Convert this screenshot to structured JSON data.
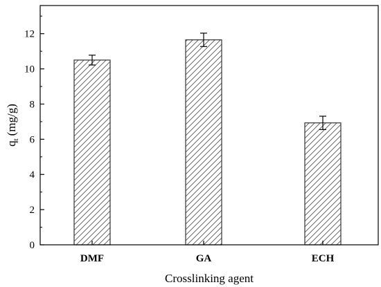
{
  "chart_data": {
    "type": "bar",
    "categories": [
      "DMF",
      "GA",
      "ECH"
    ],
    "values": [
      10.5,
      11.65,
      6.93
    ],
    "errors": [
      0.28,
      0.38,
      0.38
    ],
    "title": "",
    "xlabel": "Crosslinking agent",
    "ylabel": {
      "main": "q",
      "subscript": "t",
      "unit": "(mg/g)"
    },
    "ylim": [
      0,
      13.6
    ],
    "yticks": [
      0,
      2,
      4,
      6,
      8,
      10,
      12
    ],
    "grid": false,
    "legend": "none",
    "bar_fill": "hatched",
    "colors": {
      "bar_stroke": "#333333",
      "hatch": "#555555",
      "axis": "#000000"
    }
  }
}
